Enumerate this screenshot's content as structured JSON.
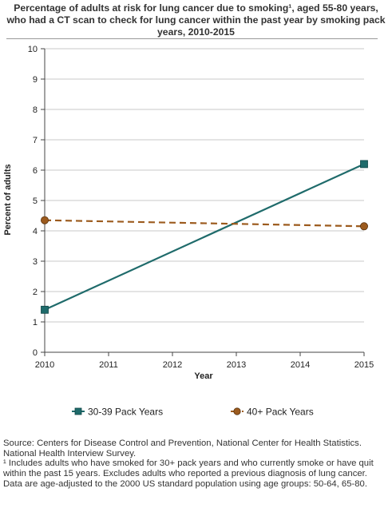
{
  "chart_data": {
    "type": "line",
    "title": "Percentage of adults at risk for lung cancer due to smoking¹, aged 55-80 years, who had a CT scan to check for lung cancer within the past year by smoking pack years, 2010-2015",
    "xlabel": "Year",
    "ylabel": "Percent of adults",
    "x": [
      2010,
      2015
    ],
    "x_ticks": [
      "2010",
      "2011",
      "2012",
      "2013",
      "2014",
      "2015"
    ],
    "y_ticks": [
      "0",
      "1",
      "2",
      "3",
      "4",
      "5",
      "6",
      "7",
      "8",
      "9",
      "10"
    ],
    "xlim": [
      2010,
      2015
    ],
    "ylim": [
      0,
      10
    ],
    "grid": true,
    "legend_position": "bottom",
    "series": [
      {
        "name": "30-39 Pack Years",
        "values": [
          1.4,
          6.2
        ],
        "color": "#1f6b6b",
        "marker": "square",
        "dash": "solid"
      },
      {
        "name": "40+ Pack Years",
        "values": [
          4.35,
          4.15
        ],
        "color": "#9c5b1e",
        "marker": "circle",
        "dash": "dashed"
      }
    ]
  },
  "footer": {
    "source": "Source: Centers for Disease Control and Prevention, National Center for Health Statistics. National Health Interview Survey.",
    "note1": "¹ Includes adults who have smoked for 30+ pack years and who currently smoke or have quit within the past 15 years. Excludes adults who reported a previous diagnosis of lung cancer.",
    "note2": "Data are age-adjusted to the 2000 US standard population using age groups: 50-64, 65-80."
  }
}
